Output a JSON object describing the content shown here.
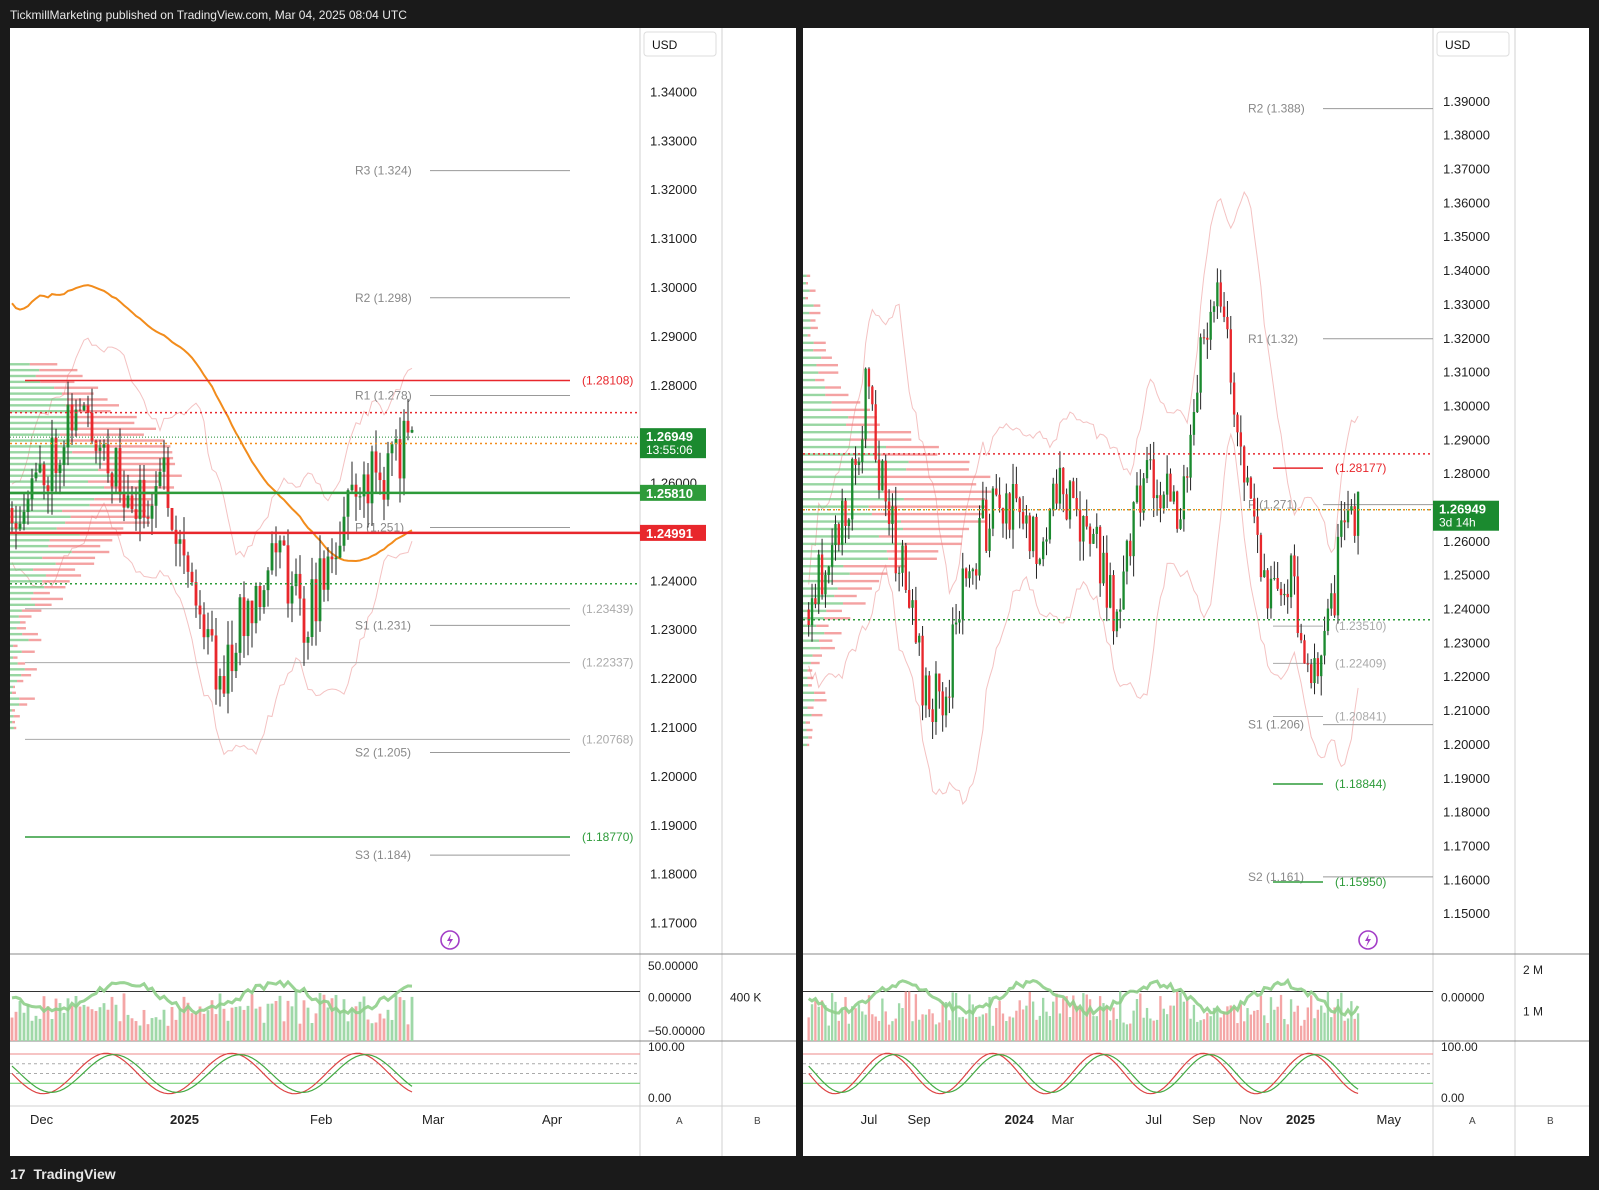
{
  "header": {
    "title": "TickmillMarketing published on TradingView.com, Mar 04, 2025 08:04 UTC"
  },
  "footer": {
    "brand": "TradingView",
    "logo_glyph": "17"
  },
  "colors": {
    "up": "#1b8a2f",
    "down": "#e8272c",
    "ma": "#f28c1c",
    "bb": "#f4c2c2",
    "pivot": "#999999",
    "green_level": "#2e9b3a",
    "red_level": "#e8272c"
  },
  "chart_data": [
    {
      "type": "candlestick",
      "currency_label": "USD",
      "price_axis": {
        "min": 1.165,
        "max": 1.345,
        "ticks": [
          "1.34000",
          "1.33000",
          "1.32000",
          "1.31000",
          "1.30000",
          "1.29000",
          "1.28000",
          "1.27000",
          "1.26000",
          "1.25000",
          "1.24000",
          "1.23000",
          "1.22000",
          "1.21000",
          "1.20000",
          "1.19000",
          "1.18000",
          "1.17000"
        ]
      },
      "time_axis": {
        "labels": [
          "Dec",
          "2025",
          "Feb",
          "Mar",
          "Apr"
        ],
        "label_bars": [
          5,
          40,
          75,
          103,
          133
        ],
        "total_bars": 150
      },
      "last_price": "1.26949",
      "countdown": "13:55:06",
      "level_tags": [
        {
          "label": "1.25810",
          "price": 1.2581,
          "color": "green"
        },
        {
          "label": "1.24991",
          "price": 1.24991,
          "color": "red"
        }
      ],
      "pivots": [
        {
          "label": "R3 (1.324)",
          "price": 1.324
        },
        {
          "label": "R2 (1.298)",
          "price": 1.298
        },
        {
          "label": "R1 (1.278)",
          "price": 1.278
        },
        {
          "label": "P (1.251)",
          "price": 1.251
        },
        {
          "label": "S1 (1.231)",
          "price": 1.231
        },
        {
          "label": "S2 (1.205)",
          "price": 1.205
        },
        {
          "label": "S3 (1.184)",
          "price": 1.184
        }
      ],
      "levels": [
        {
          "label": "(1.28108)",
          "price": 1.28108,
          "kind": "red"
        },
        {
          "label": "(1.23439)",
          "price": 1.23439,
          "kind": "gray"
        },
        {
          "label": "(1.22337)",
          "price": 1.22337,
          "kind": "gray"
        },
        {
          "label": "(1.20768)",
          "price": 1.20768,
          "kind": "gray"
        },
        {
          "label": "(1.18770)",
          "price": 1.1877,
          "kind": "green"
        }
      ],
      "candles_anchor": [
        [
          0,
          1.255
        ],
        [
          8,
          1.262
        ],
        [
          15,
          1.275
        ],
        [
          22,
          1.27
        ],
        [
          30,
          1.253
        ],
        [
          38,
          1.262
        ],
        [
          45,
          1.24
        ],
        [
          52,
          1.22
        ],
        [
          58,
          1.233
        ],
        [
          66,
          1.248
        ],
        [
          73,
          1.232
        ],
        [
          80,
          1.245
        ],
        [
          86,
          1.26
        ],
        [
          93,
          1.262
        ],
        [
          100,
          1.27
        ]
      ],
      "osc_top": {
        "labels": [
          "50.00000",
          "0.00000",
          "−50.00000"
        ],
        "aux_label": "400 K"
      },
      "osc_bottom": {
        "labels": [
          "100.00",
          "0.00"
        ]
      },
      "bottom_buttons": [
        "A",
        "B"
      ]
    },
    {
      "type": "candlestick",
      "currency_label": "USD",
      "price_axis": {
        "min": 1.14,
        "max": 1.4,
        "ticks": [
          "1.39000",
          "1.38000",
          "1.37000",
          "1.36000",
          "1.35000",
          "1.34000",
          "1.33000",
          "1.32000",
          "1.31000",
          "1.30000",
          "1.29000",
          "1.28000",
          "1.27000",
          "1.26000",
          "1.25000",
          "1.24000",
          "1.23000",
          "1.22000",
          "1.21000",
          "1.20000",
          "1.19000",
          "1.18000",
          "1.17000",
          "1.16000",
          "1.15000"
        ]
      },
      "time_axis": {
        "labels": [
          "Jul",
          "Sep",
          "2024",
          "Mar",
          "Jul",
          "Sep",
          "Nov",
          "2025",
          "May"
        ],
        "label_bars": [
          16,
          30,
          59,
          73,
          101,
          115,
          129,
          143,
          170
        ],
        "total_bars": 175
      },
      "last_price": "1.26949",
      "countdown": "3d 14h",
      "pivots": [
        {
          "label": "R2 (1.388)",
          "price": 1.388
        },
        {
          "label": "R1 (1.32)",
          "price": 1.32
        },
        {
          "label": "P (1.271)",
          "price": 1.271
        },
        {
          "label": "S1 (1.206)",
          "price": 1.206
        },
        {
          "label": "S2 (1.161)",
          "price": 1.161
        }
      ],
      "levels": [
        {
          "label": "(1.28177)",
          "price": 1.28177,
          "kind": "red"
        },
        {
          "label": "(1.23510)",
          "price": 1.2351,
          "kind": "gray"
        },
        {
          "label": "(1.22409)",
          "price": 1.22409,
          "kind": "gray"
        },
        {
          "label": "(1.20841)",
          "price": 1.20841,
          "kind": "gray"
        },
        {
          "label": "(1.18844)",
          "price": 1.18844,
          "kind": "green"
        },
        {
          "label": "(1.15950)",
          "price": 1.1595,
          "kind": "green"
        }
      ],
      "candles_anchor": [
        [
          0,
          1.24
        ],
        [
          5,
          1.255
        ],
        [
          12,
          1.27
        ],
        [
          18,
          1.31
        ],
        [
          22,
          1.275
        ],
        [
          28,
          1.25
        ],
        [
          34,
          1.22
        ],
        [
          40,
          1.21
        ],
        [
          46,
          1.245
        ],
        [
          52,
          1.265
        ],
        [
          60,
          1.27
        ],
        [
          68,
          1.26
        ],
        [
          75,
          1.28
        ],
        [
          80,
          1.262
        ],
        [
          86,
          1.26
        ],
        [
          92,
          1.235
        ],
        [
          98,
          1.275
        ],
        [
          104,
          1.28
        ],
        [
          110,
          1.265
        ],
        [
          116,
          1.31
        ],
        [
          122,
          1.335
        ],
        [
          128,
          1.3
        ],
        [
          132,
          1.27
        ],
        [
          138,
          1.245
        ],
        [
          144,
          1.25
        ],
        [
          148,
          1.23
        ],
        [
          152,
          1.215
        ],
        [
          156,
          1.24
        ],
        [
          160,
          1.265
        ],
        [
          164,
          1.27
        ]
      ],
      "osc_top": {
        "labels": [
          "0.00000"
        ],
        "aux_label": "2 M",
        "aux_label2": "1 M"
      },
      "osc_bottom": {
        "labels": [
          "100.00",
          "0.00"
        ]
      },
      "bottom_buttons": [
        "A",
        "B"
      ]
    }
  ]
}
